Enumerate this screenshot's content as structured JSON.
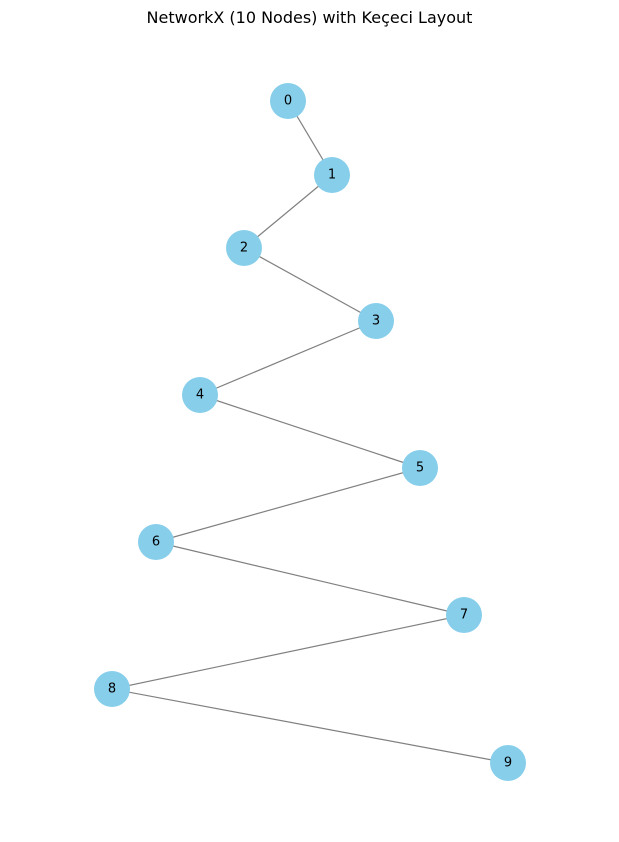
{
  "figure": {
    "title": "NetworkX (10 Nodes) with Keçeci Layout"
  },
  "graph": {
    "layout": "Keçeci",
    "node_color": "#87ceeb",
    "edge_color": "#808080",
    "label_color": "#000000",
    "nodes": [
      {
        "id": 0,
        "label": "0"
      },
      {
        "id": 1,
        "label": "1"
      },
      {
        "id": 2,
        "label": "2"
      },
      {
        "id": 3,
        "label": "3"
      },
      {
        "id": 4,
        "label": "4"
      },
      {
        "id": 5,
        "label": "5"
      },
      {
        "id": 6,
        "label": "6"
      },
      {
        "id": 7,
        "label": "7"
      },
      {
        "id": 8,
        "label": "8"
      },
      {
        "id": 9,
        "label": "9"
      }
    ],
    "edges": [
      [
        0,
        1
      ],
      [
        1,
        2
      ],
      [
        2,
        3
      ],
      [
        3,
        4
      ],
      [
        4,
        5
      ],
      [
        5,
        6
      ],
      [
        6,
        7
      ],
      [
        7,
        8
      ],
      [
        8,
        9
      ]
    ]
  }
}
